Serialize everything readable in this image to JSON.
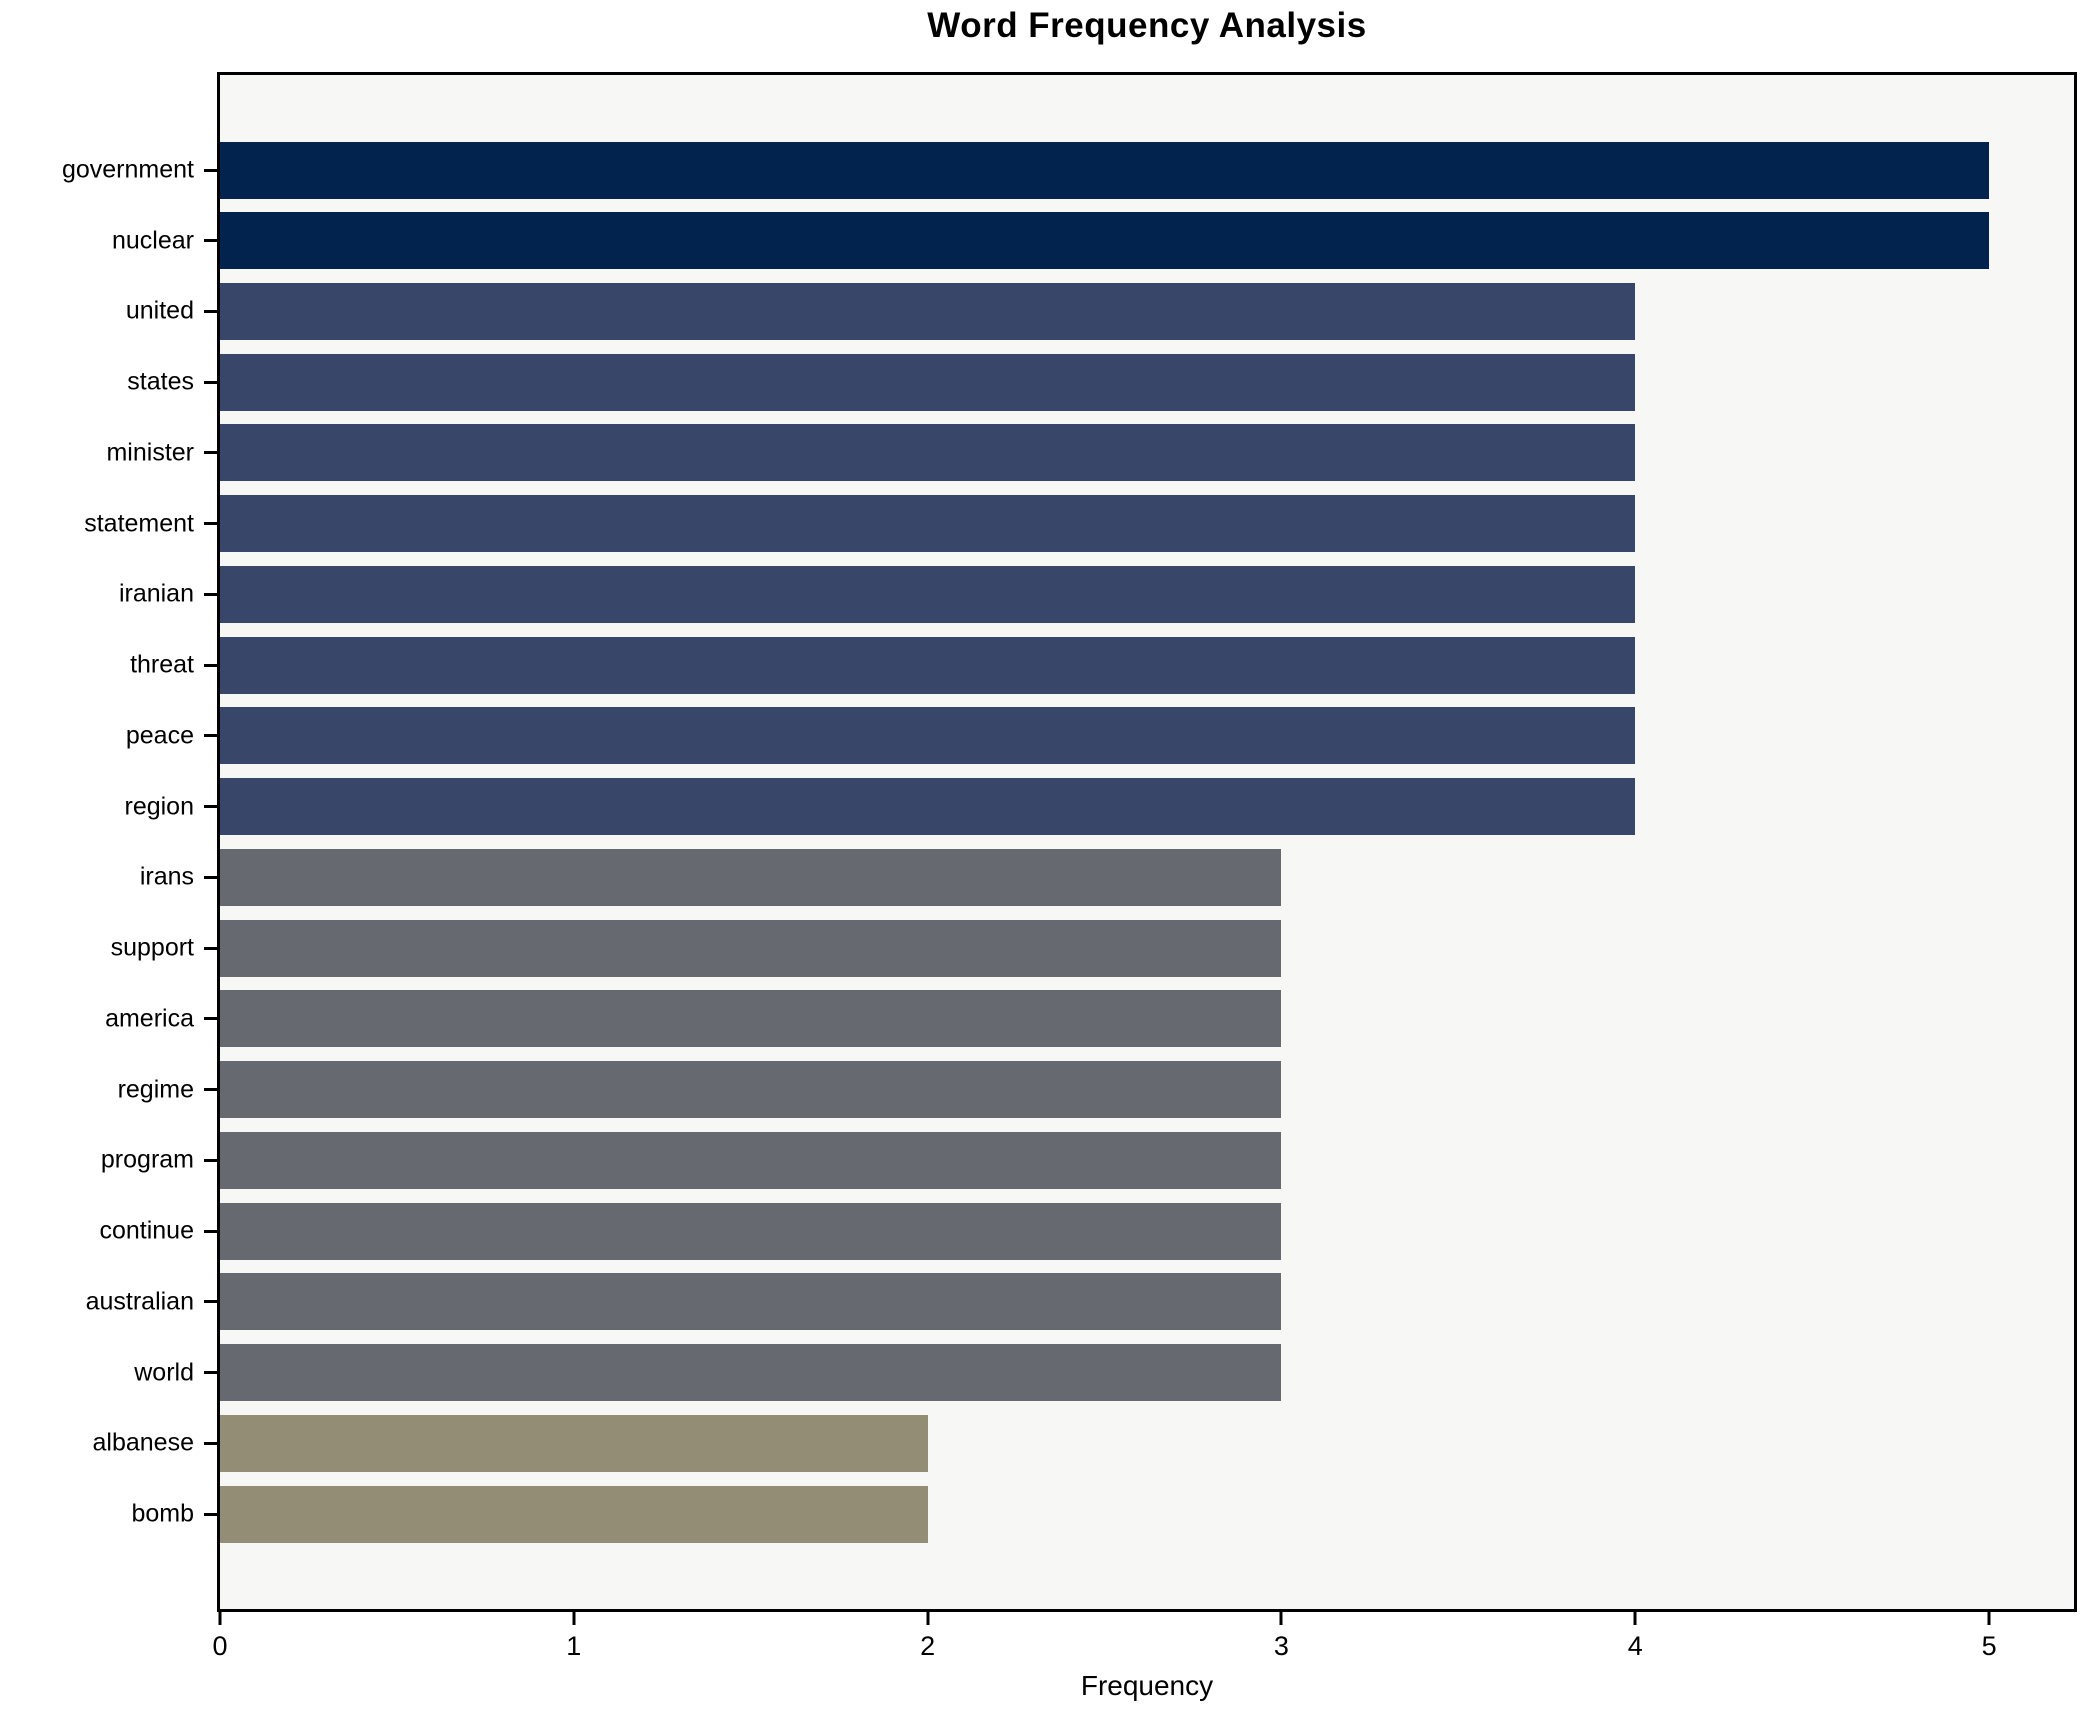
{
  "figure": {
    "title": "Word Frequency Analysis",
    "xlabel": "Frequency"
  },
  "chart_data": {
    "type": "bar",
    "orientation": "horizontal",
    "title": "Word Frequency Analysis",
    "xlabel": "Frequency",
    "ylabel": "",
    "categories": [
      "government",
      "nuclear",
      "united",
      "states",
      "minister",
      "statement",
      "iranian",
      "threat",
      "peace",
      "region",
      "irans",
      "support",
      "america",
      "regime",
      "program",
      "continue",
      "australian",
      "world",
      "albanese",
      "bomb"
    ],
    "values": [
      5,
      5,
      4,
      4,
      4,
      4,
      4,
      4,
      4,
      4,
      3,
      3,
      3,
      3,
      3,
      3,
      3,
      3,
      2,
      2
    ],
    "bar_colors": [
      "#02234d",
      "#02234d",
      "#374669",
      "#374669",
      "#374669",
      "#374669",
      "#374669",
      "#374669",
      "#374669",
      "#374669",
      "#666a70",
      "#666a70",
      "#666a70",
      "#666a70",
      "#666a70",
      "#666a70",
      "#666a70",
      "#666a70",
      "#948d75",
      "#948d75"
    ],
    "value_color_map": {
      "5": "#02234d",
      "4": "#374669",
      "3": "#666a70",
      "2": "#948d75"
    },
    "x_ticks": [
      0,
      1,
      2,
      3,
      4,
      5
    ],
    "xlim": [
      0,
      5.24
    ],
    "grid": false,
    "legend": false,
    "style": {
      "plot_background": "#f7f7f5",
      "figure_background": "#ffffff",
      "spine_color": "#000000",
      "text_color": "#000000"
    }
  }
}
